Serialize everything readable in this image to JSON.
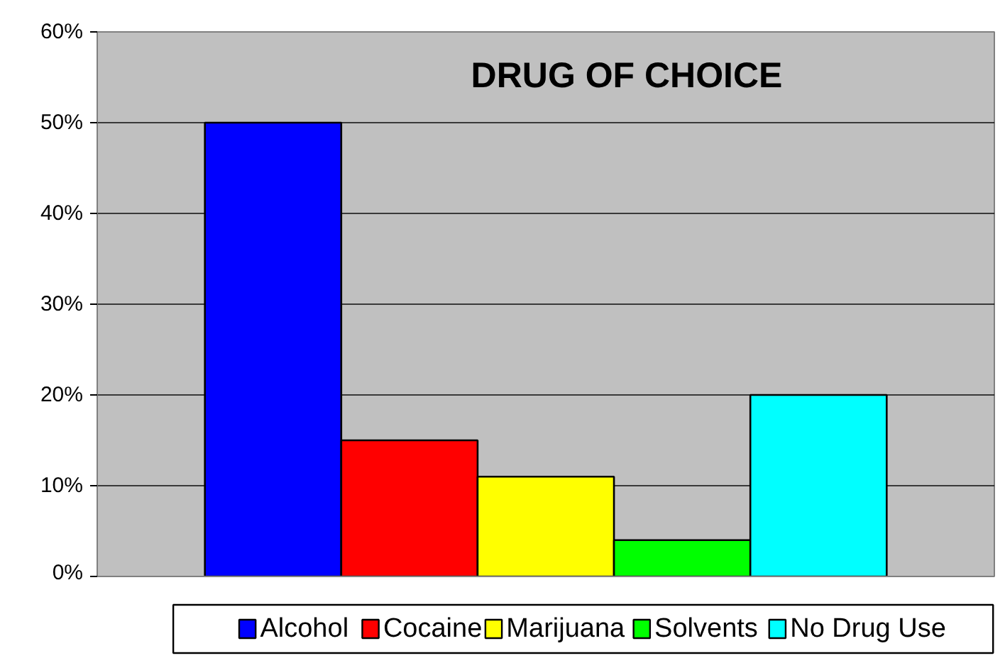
{
  "chart_data": {
    "type": "bar",
    "title": "DRUG OF CHOICE",
    "categories": [
      null
    ],
    "series": [
      {
        "name": "Alcohol",
        "color": "#0000ff",
        "values": [
          50
        ]
      },
      {
        "name": "Cocaine",
        "color": "#ff0000",
        "values": [
          15
        ]
      },
      {
        "name": "Marijuana",
        "color": "#ffff00",
        "values": [
          11
        ]
      },
      {
        "name": "Solvents",
        "color": "#00ff00",
        "values": [
          4
        ]
      },
      {
        "name": "No Drug Use",
        "color": "#00ffff",
        "values": [
          20
        ]
      }
    ],
    "ylim": [
      0,
      60
    ],
    "yticks": [
      {
        "value": 0,
        "label": "0%"
      },
      {
        "value": 10,
        "label": "10%"
      },
      {
        "value": 20,
        "label": "20%"
      },
      {
        "value": 30,
        "label": "30%"
      },
      {
        "value": 40,
        "label": "40%"
      },
      {
        "value": 50,
        "label": "50%"
      },
      {
        "value": 60,
        "label": "60%"
      }
    ],
    "grid": "y",
    "legend": "bottom",
    "tick_labels": "y"
  }
}
